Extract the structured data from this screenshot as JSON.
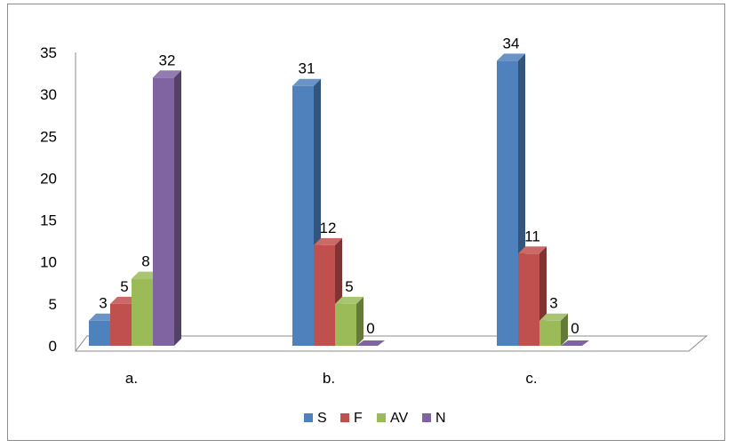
{
  "chart_data": {
    "type": "bar",
    "title": "",
    "xlabel": "",
    "ylabel": "",
    "categories": [
      "a.",
      "b.",
      "c."
    ],
    "series": [
      {
        "name": "S",
        "values": [
          3,
          31,
          34
        ],
        "color": "#4f81bd"
      },
      {
        "name": "F",
        "values": [
          5,
          12,
          11
        ],
        "color": "#c0504d"
      },
      {
        "name": "AV",
        "values": [
          8,
          5,
          3
        ],
        "color": "#9bbb59"
      },
      {
        "name": "N",
        "values": [
          32,
          0,
          0
        ],
        "color": "#8064a2"
      }
    ],
    "y_ticks": [
      "0",
      "5",
      "10",
      "15",
      "20",
      "25",
      "30",
      "35"
    ],
    "ylim": [
      0,
      35
    ],
    "data_labels": true,
    "style": "3d-column",
    "grid": false,
    "legend": "bottom"
  }
}
